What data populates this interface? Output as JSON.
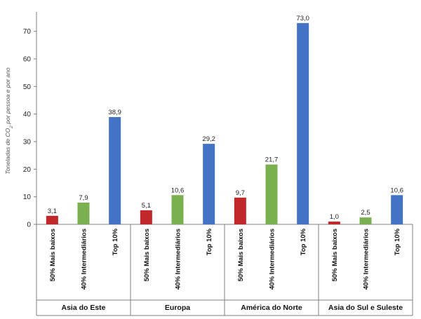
{
  "chart_data": {
    "type": "bar",
    "ylabel": "Toneladas de CO2 por pessoa e por ano",
    "ylim": [
      0,
      75
    ],
    "yticks": [
      0,
      10,
      20,
      30,
      40,
      50,
      60,
      70
    ],
    "grid": false,
    "series_colors": {
      "50% Mais baixos": "#c0282b",
      "40% Intermediários": "#7ab04f",
      "Top 10%": "#4472c4"
    },
    "groups": [
      {
        "name": "Asia do Este",
        "bars": [
          {
            "category": "50% Mais baixos",
            "value": 3.1,
            "label": "3,1"
          },
          {
            "category": "40% Intermediários",
            "value": 7.9,
            "label": "7,9"
          },
          {
            "category": "Top 10%",
            "value": 38.9,
            "label": "38,9"
          }
        ]
      },
      {
        "name": "Europa",
        "bars": [
          {
            "category": "50% Mais baixos",
            "value": 5.1,
            "label": "5,1"
          },
          {
            "category": "40% Intermediários",
            "value": 10.6,
            "label": "10,6"
          },
          {
            "category": "Top 10%",
            "value": 29.2,
            "label": "29,2"
          }
        ]
      },
      {
        "name": "América do Norte",
        "bars": [
          {
            "category": "50% Mais baixos",
            "value": 9.7,
            "label": "9,7"
          },
          {
            "category": "40% Intermediários",
            "value": 21.7,
            "label": "21,7"
          },
          {
            "category": "Top 10%",
            "value": 73.0,
            "label": "73,0"
          }
        ]
      },
      {
        "name": "Asia do Sul e Suleste",
        "bars": [
          {
            "category": "50% Mais baixos",
            "value": 1.0,
            "label": "1,0"
          },
          {
            "category": "40% Intermediários",
            "value": 2.5,
            "label": "2,5"
          },
          {
            "category": "Top 10%",
            "value": 10.6,
            "label": "10,6"
          }
        ]
      }
    ]
  }
}
